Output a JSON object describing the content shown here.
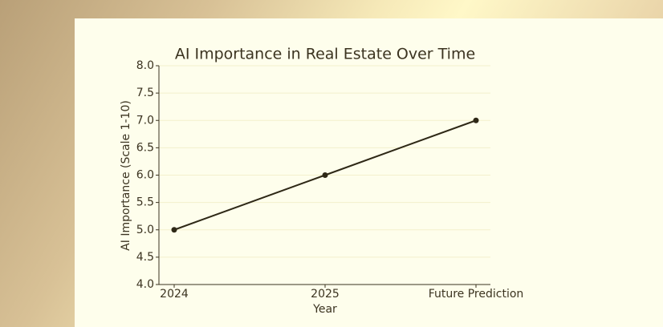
{
  "chart_data": {
    "type": "line",
    "title": "AI Importance in Real Estate Over Time",
    "x_label": "Year",
    "y_label": "AI Importance (Scale 1-10)",
    "categories": [
      "2024",
      "2025",
      "Future Prediction"
    ],
    "values": [
      5,
      6,
      7
    ],
    "color": "#2e2816",
    "ylim": [
      4,
      8
    ],
    "yticks": [
      {
        "value": 4,
        "label": "4.0"
      },
      {
        "value": 4.5,
        "label": "4.5"
      },
      {
        "value": 5,
        "label": "5.0"
      },
      {
        "value": 5.5,
        "label": "5.5"
      },
      {
        "value": 6,
        "label": "6.0"
      },
      {
        "value": 6.5,
        "label": "6.5"
      },
      {
        "value": 7,
        "label": "7.0"
      },
      {
        "value": 7.5,
        "label": "7.5"
      },
      {
        "value": 8,
        "label": "8.0"
      }
    ],
    "grid": true
  }
}
